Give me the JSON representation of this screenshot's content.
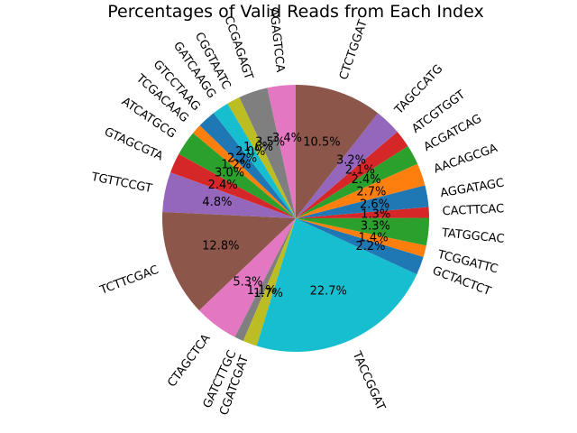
{
  "chart_data": {
    "type": "pie",
    "title": "Percentages of Valid Reads from Each Index",
    "startangle": 90,
    "direction": "counterclockwise",
    "labels": [
      "AGAGTCCA",
      "CCGAGAGT",
      "CGGTAATC",
      "GATCAAGG",
      "GTCCTAAG",
      "TCGACAAG",
      "ATCATGCG",
      "GTAGCGTA",
      "TGTTCCGT",
      "TCTTCGAC",
      "CTAGCTCA",
      "GATCTTGC",
      "CGATCGAT",
      "TACCGGAT",
      "GCTACTCT",
      "TCGGATTC",
      "TATGGCAC",
      "CACTTCAC",
      "AGGATAGC",
      "AACAGCGA",
      "ACGATCAG",
      "ATCGTGGT",
      "TAGCCATG",
      "CTCTGGAT"
    ],
    "percent_labels": [
      "3.4%",
      "3.5%",
      "1.6%",
      "2.0%",
      "2.2%",
      "1.2%",
      "3.0%",
      "2.4%",
      "4.8%",
      "12.8%",
      "5.3%",
      "1.1%",
      "1.7%",
      "22.7%",
      "2.2%",
      "1.4%",
      "3.3%",
      "1.3%",
      "2.6%",
      "2.7%",
      "2.4%",
      "2.1%",
      "3.2%",
      "10.5%"
    ],
    "values": [
      3.4,
      3.5,
      1.6,
      2.0,
      2.2,
      1.2,
      3.0,
      2.4,
      4.8,
      12.8,
      5.3,
      1.1,
      1.7,
      22.7,
      2.2,
      1.4,
      3.3,
      1.3,
      2.6,
      2.7,
      2.4,
      2.1,
      3.2,
      10.5
    ],
    "colors": [
      "#e377c2",
      "#7f7f7f",
      "#bcbd22",
      "#17becf",
      "#1f77b4",
      "#ff7f0e",
      "#2ca02c",
      "#d62728",
      "#9467bd",
      "#8c564b",
      "#e377c2",
      "#7f7f7f",
      "#bcbd22",
      "#17becf",
      "#1f77b4",
      "#ff7f0e",
      "#2ca02c",
      "#d62728",
      "#1f77b4",
      "#ff7f0e",
      "#2ca02c",
      "#d62728",
      "#9467bd",
      "#8c564b"
    ]
  }
}
